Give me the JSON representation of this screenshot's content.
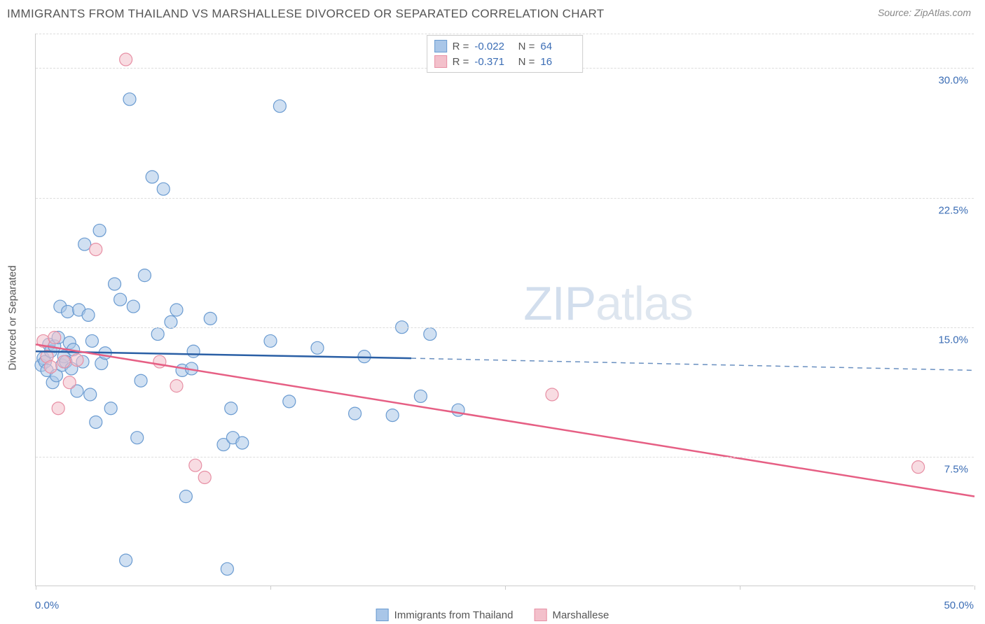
{
  "header": {
    "title": "IMMIGRANTS FROM THAILAND VS MARSHALLESE DIVORCED OR SEPARATED CORRELATION CHART",
    "source_label": "Source:",
    "source_name": "ZipAtlas.com"
  },
  "chart": {
    "type": "scatter",
    "watermark": "ZIPatlas",
    "ylabel": "Divorced or Separated",
    "xlim": [
      0,
      50
    ],
    "ylim": [
      0,
      32
    ],
    "xtick_positions": [
      0,
      12.5,
      25,
      37.5,
      50
    ],
    "xaxis_label_min": "0.0%",
    "xaxis_label_max": "50.0%",
    "yticks": [
      {
        "v": 7.5,
        "label": "7.5%"
      },
      {
        "v": 15.0,
        "label": "15.0%"
      },
      {
        "v": 22.5,
        "label": "22.5%"
      },
      {
        "v": 30.0,
        "label": "30.0%"
      }
    ],
    "background_color": "#ffffff",
    "grid_color": "#dddddd",
    "axis_color": "#cccccc",
    "series": [
      {
        "name": "Immigrants from Thailand",
        "key": "thailand",
        "fill_color": "#a9c6e8",
        "stroke_color": "#6a9bd1",
        "line_color": "#2a5fa5",
        "marker_radius": 9,
        "fill_opacity": 0.55,
        "R": "-0.022",
        "N": "64",
        "trend_solid": {
          "x1": 0,
          "y1": 13.6,
          "x2": 20,
          "y2": 13.2
        },
        "trend_dash": {
          "x1": 20,
          "y1": 13.2,
          "x2": 50,
          "y2": 12.5
        },
        "points": [
          [
            0.3,
            12.8
          ],
          [
            0.4,
            13.2
          ],
          [
            0.5,
            13.0
          ],
          [
            0.6,
            12.5
          ],
          [
            0.7,
            14.0
          ],
          [
            0.8,
            13.6
          ],
          [
            0.9,
            11.8
          ],
          [
            1.0,
            13.9
          ],
          [
            1.1,
            12.2
          ],
          [
            1.2,
            14.4
          ],
          [
            1.3,
            16.2
          ],
          [
            1.4,
            12.8
          ],
          [
            1.5,
            13.3
          ],
          [
            1.6,
            13.0
          ],
          [
            1.7,
            15.9
          ],
          [
            1.8,
            14.1
          ],
          [
            1.9,
            12.6
          ],
          [
            2.0,
            13.7
          ],
          [
            2.2,
            11.3
          ],
          [
            2.3,
            16.0
          ],
          [
            2.5,
            13.0
          ],
          [
            2.6,
            19.8
          ],
          [
            2.8,
            15.7
          ],
          [
            2.9,
            11.1
          ],
          [
            3.0,
            14.2
          ],
          [
            3.2,
            9.5
          ],
          [
            3.4,
            20.6
          ],
          [
            3.5,
            12.9
          ],
          [
            3.7,
            13.5
          ],
          [
            4.0,
            10.3
          ],
          [
            4.2,
            17.5
          ],
          [
            4.5,
            16.6
          ],
          [
            4.8,
            1.5
          ],
          [
            5.0,
            28.2
          ],
          [
            5.2,
            16.2
          ],
          [
            5.4,
            8.6
          ],
          [
            5.6,
            11.9
          ],
          [
            5.8,
            18.0
          ],
          [
            6.2,
            23.7
          ],
          [
            6.5,
            14.6
          ],
          [
            6.8,
            23.0
          ],
          [
            7.2,
            15.3
          ],
          [
            7.5,
            16.0
          ],
          [
            7.8,
            12.5
          ],
          [
            8.0,
            5.2
          ],
          [
            8.3,
            12.6
          ],
          [
            8.4,
            13.6
          ],
          [
            9.3,
            15.5
          ],
          [
            10.0,
            8.2
          ],
          [
            10.2,
            1.0
          ],
          [
            10.4,
            10.3
          ],
          [
            10.5,
            8.6
          ],
          [
            11.0,
            8.3
          ],
          [
            12.5,
            14.2
          ],
          [
            13.0,
            27.8
          ],
          [
            13.5,
            10.7
          ],
          [
            15.0,
            13.8
          ],
          [
            17.0,
            10.0
          ],
          [
            17.5,
            13.3
          ],
          [
            19.0,
            9.9
          ],
          [
            19.5,
            15.0
          ],
          [
            20.5,
            11.0
          ],
          [
            21.0,
            14.6
          ],
          [
            22.5,
            10.2
          ]
        ]
      },
      {
        "name": "Marshallese",
        "key": "marshallese",
        "fill_color": "#f3c0cb",
        "stroke_color": "#e78fa4",
        "line_color": "#e65f84",
        "marker_radius": 9,
        "fill_opacity": 0.55,
        "R": "-0.371",
        "N": "16",
        "trend_solid": {
          "x1": 0,
          "y1": 14.0,
          "x2": 50,
          "y2": 5.2
        },
        "trend_dash": null,
        "points": [
          [
            0.4,
            14.2
          ],
          [
            0.6,
            13.3
          ],
          [
            0.8,
            12.7
          ],
          [
            1.0,
            14.4
          ],
          [
            1.2,
            10.3
          ],
          [
            1.5,
            13.0
          ],
          [
            1.8,
            11.8
          ],
          [
            2.2,
            13.1
          ],
          [
            3.2,
            19.5
          ],
          [
            4.8,
            30.5
          ],
          [
            6.6,
            13.0
          ],
          [
            7.5,
            11.6
          ],
          [
            8.5,
            7.0
          ],
          [
            9.0,
            6.3
          ],
          [
            27.5,
            11.1
          ],
          [
            47.0,
            6.9
          ]
        ]
      }
    ],
    "legend_bottom": [
      {
        "label": "Immigrants from Thailand",
        "fill": "#a9c6e8",
        "stroke": "#6a9bd1"
      },
      {
        "label": "Marshallese",
        "fill": "#f3c0cb",
        "stroke": "#e78fa4"
      }
    ]
  }
}
